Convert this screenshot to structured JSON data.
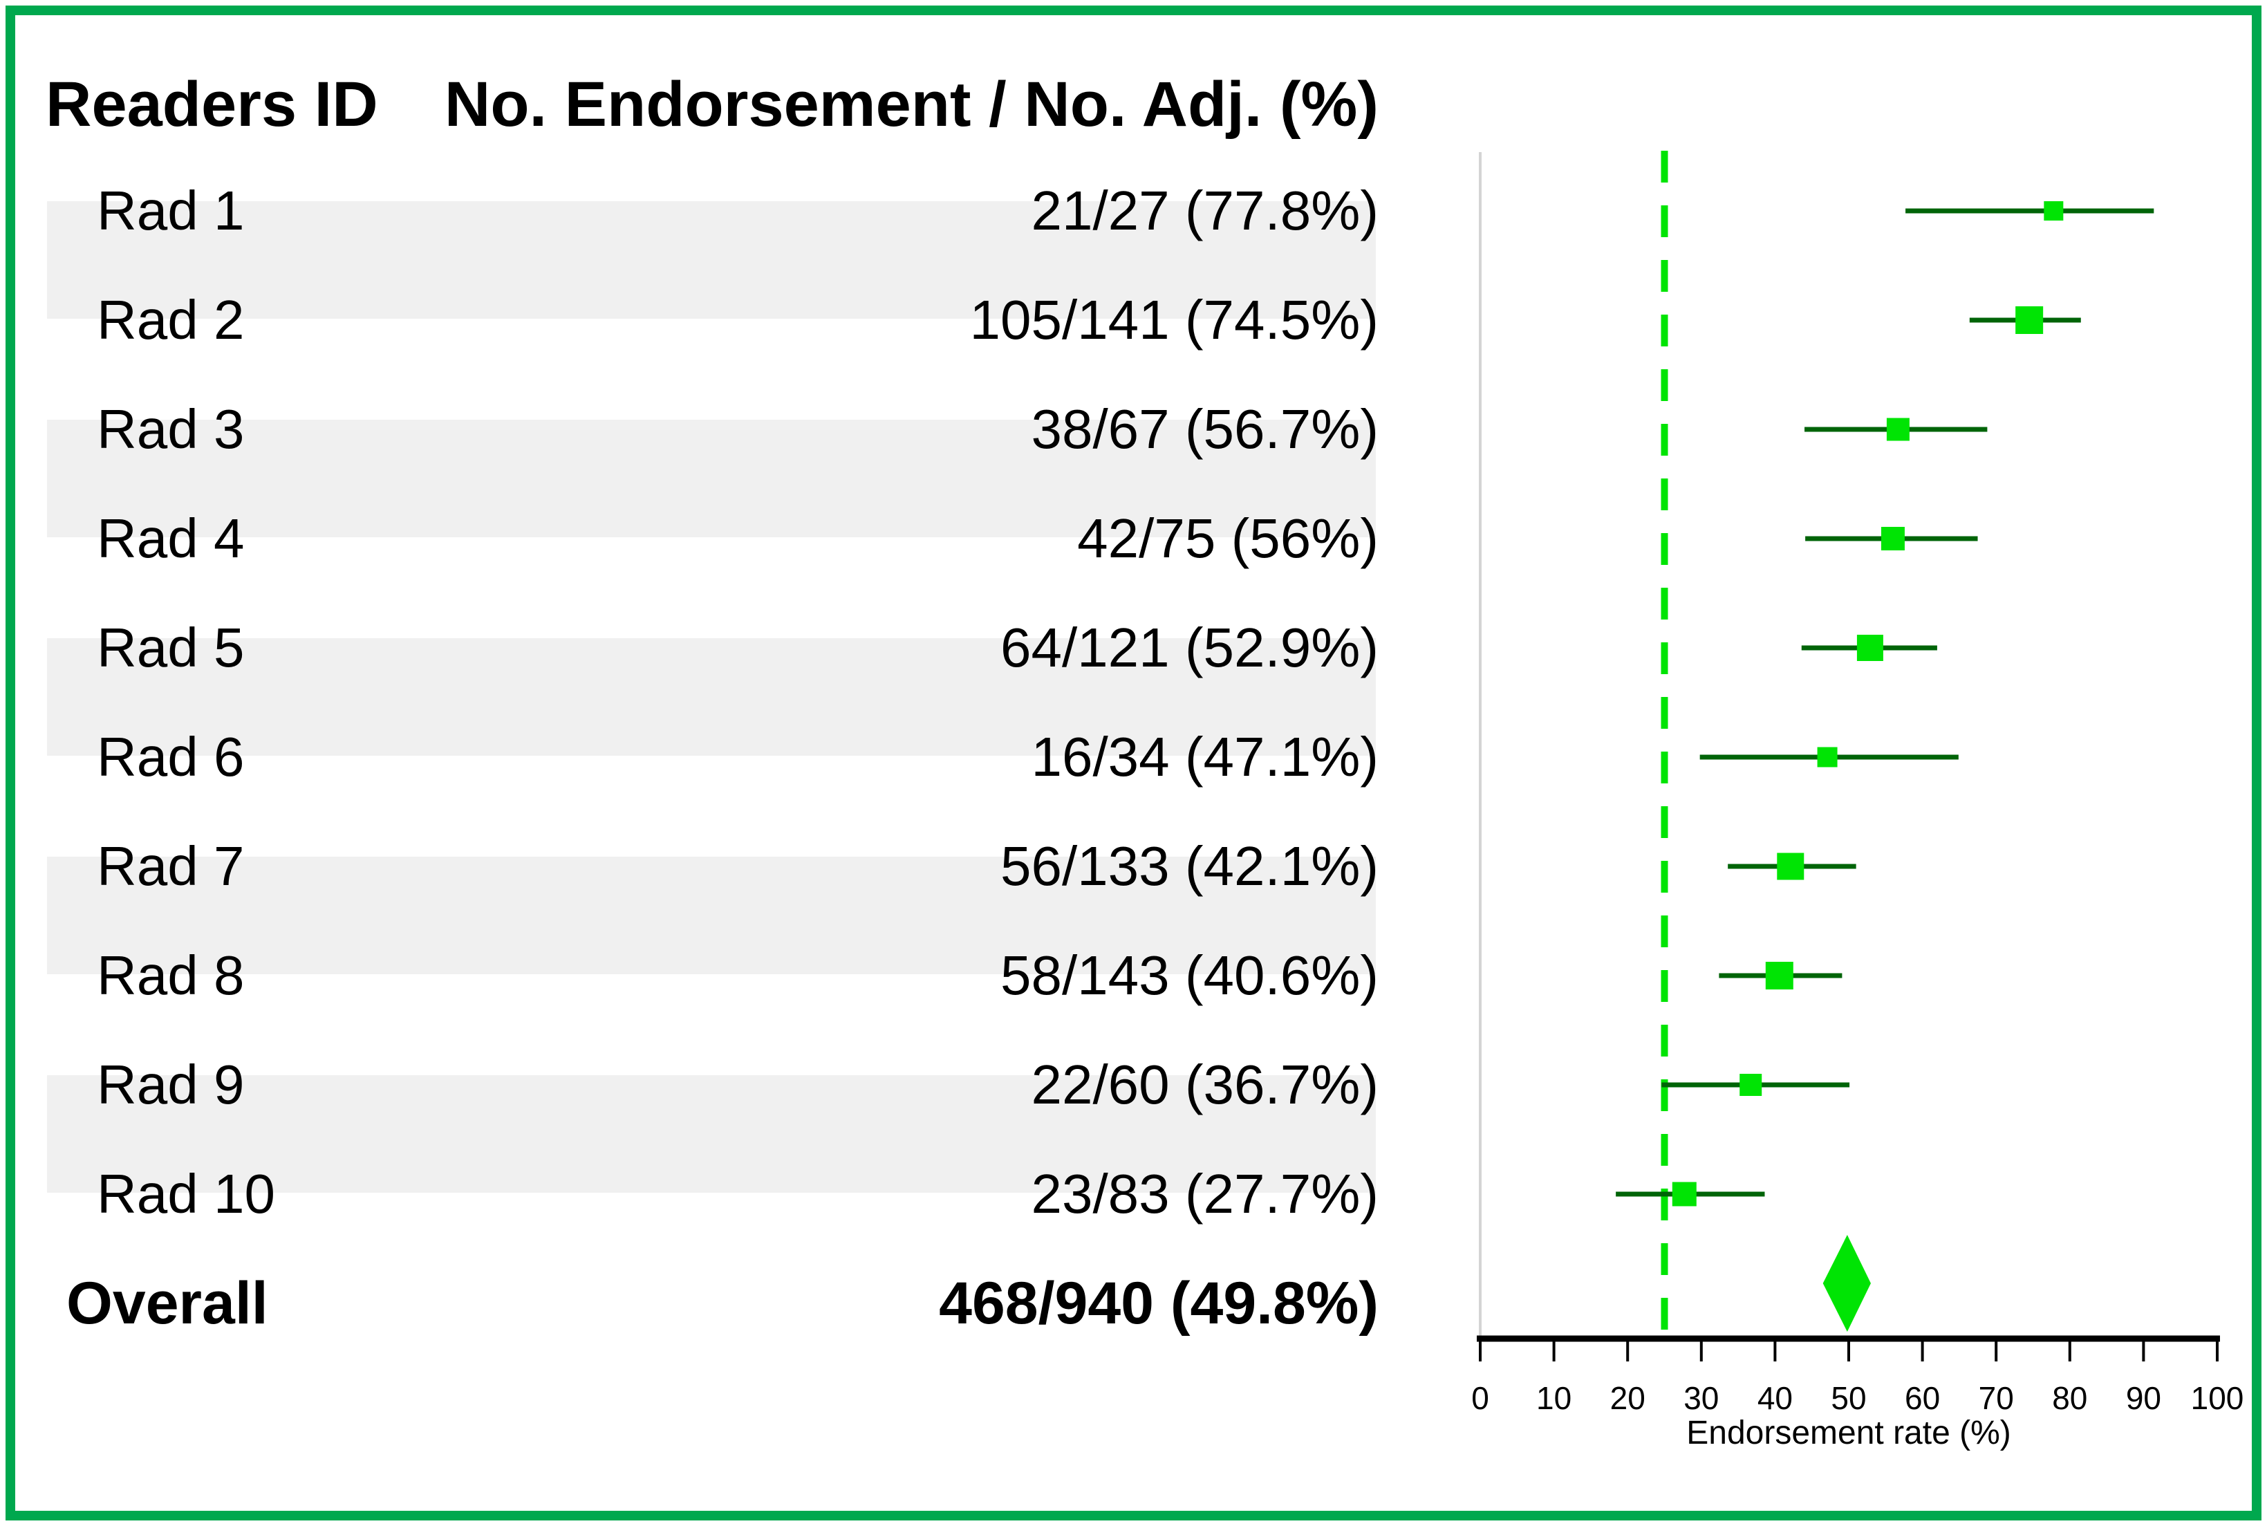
{
  "figure": {
    "frame_color": "#00a84e",
    "stripe_color": "#f0f0f0",
    "accent_green": "#00e404",
    "ci_line_color": "#006408",
    "axis_color": "#000000",
    "y_axis_line_color": "#d4d4d4"
  },
  "header": {
    "col1": "Readers ID",
    "col2": "No. Endorsement / No. Adj. (%)"
  },
  "chart_data": {
    "type": "forest",
    "xlabel": "Endorsement rate (%)",
    "xlim": [
      0,
      100
    ],
    "xticks": [
      0,
      10,
      20,
      30,
      40,
      50,
      60,
      70,
      80,
      90,
      100
    ],
    "reference_line_x": 25,
    "reference_line_style": "dashed-green",
    "legend": "none",
    "grid": false,
    "rows": [
      {
        "label": "Rad 1",
        "value_text": "21/27 (77.8%)",
        "endorsed": 21,
        "adjudicated": 27,
        "rate_pct": 77.8,
        "ci_low": 57.7,
        "ci_high": 91.4,
        "shaded": true
      },
      {
        "label": "Rad 2",
        "value_text": "105/141 (74.5%)",
        "endorsed": 105,
        "adjudicated": 141,
        "rate_pct": 74.5,
        "ci_low": 66.4,
        "ci_high": 81.5,
        "shaded": false
      },
      {
        "label": "Rad 3",
        "value_text": "38/67 (56.7%)",
        "endorsed": 38,
        "adjudicated": 67,
        "rate_pct": 56.7,
        "ci_low": 44.0,
        "ci_high": 68.8,
        "shaded": true
      },
      {
        "label": "Rad 4",
        "value_text": "42/75 (56%)",
        "endorsed": 42,
        "adjudicated": 75,
        "rate_pct": 56.0,
        "ci_low": 44.1,
        "ci_high": 67.5,
        "shaded": false
      },
      {
        "label": "Rad 5",
        "value_text": "64/121 (52.9%)",
        "endorsed": 64,
        "adjudicated": 121,
        "rate_pct": 52.9,
        "ci_low": 43.6,
        "ci_high": 62.0,
        "shaded": true
      },
      {
        "label": "Rad 6",
        "value_text": "16/34 (47.1%)",
        "endorsed": 16,
        "adjudicated": 34,
        "rate_pct": 47.1,
        "ci_low": 29.8,
        "ci_high": 64.9,
        "shaded": false
      },
      {
        "label": "Rad 7",
        "value_text": "56/133 (42.1%)",
        "endorsed": 56,
        "adjudicated": 133,
        "rate_pct": 42.1,
        "ci_low": 33.6,
        "ci_high": 51.0,
        "shaded": true
      },
      {
        "label": "Rad 8",
        "value_text": "58/143 (40.6%)",
        "endorsed": 58,
        "adjudicated": 143,
        "rate_pct": 40.6,
        "ci_low": 32.4,
        "ci_high": 49.1,
        "shaded": false
      },
      {
        "label": "Rad 9",
        "value_text": "22/60 (36.7%)",
        "endorsed": 22,
        "adjudicated": 60,
        "rate_pct": 36.7,
        "ci_low": 24.6,
        "ci_high": 50.1,
        "shaded": true
      },
      {
        "label": "Rad 10",
        "value_text": "23/83 (27.7%)",
        "endorsed": 23,
        "adjudicated": 83,
        "rate_pct": 27.7,
        "ci_low": 18.4,
        "ci_high": 38.6,
        "shaded": false
      }
    ],
    "overall": {
      "label": "Overall",
      "value_text": "468/940 (49.8%)",
      "endorsed": 468,
      "adjudicated": 940,
      "rate_pct": 49.8,
      "ci_low": 46.5,
      "ci_high": 53.0,
      "marker": "diamond"
    }
  }
}
